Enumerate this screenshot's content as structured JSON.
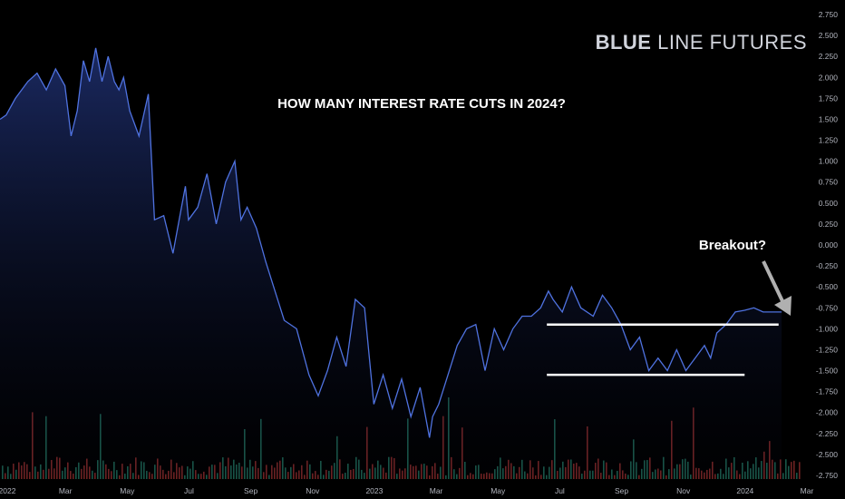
{
  "chart_data": {
    "type": "area",
    "title": "HOW MANY INTEREST RATE CUTS IN 2024?",
    "annotation": "Breakout?",
    "brand": {
      "bold": "BLUE",
      "rest": " LINE FUTURES"
    },
    "colors": {
      "line": "#4f72e0",
      "background": "#000000",
      "level": "#ffffff",
      "volume_up": "#1f6b5a",
      "volume_down": "#8a2a2a",
      "arrow": "#b0b0b0"
    },
    "y_ticks": [
      "2.750",
      "2.500",
      "2.250",
      "2.000",
      "1.750",
      "1.500",
      "1.250",
      "1.000",
      "0.750",
      "0.500",
      "0.250",
      "0.000",
      "-0.250",
      "-0.500",
      "-0.750",
      "-1.000",
      "-1.250",
      "-1.500",
      "-1.750",
      "-2.000",
      "-2.250",
      "-2.500",
      "-2.750"
    ],
    "x_ticks": [
      "2022",
      "Mar",
      "May",
      "Jul",
      "Sep",
      "Nov",
      "2023",
      "Mar",
      "May",
      "Jul",
      "Sep",
      "Nov",
      "2024",
      "Mar"
    ],
    "ylim": [
      -2.75,
      2.75
    ],
    "xlim": [
      0,
      26
    ],
    "series": [
      {
        "x": [
          0,
          0.2,
          0.5,
          0.9,
          1.2,
          1.5,
          1.8,
          2.1,
          2.3,
          2.5,
          2.7,
          2.9,
          3.1,
          3.3,
          3.5,
          3.7,
          3.85,
          4.0,
          4.2,
          4.5,
          4.8,
          5.0,
          5.3,
          5.6,
          5.85,
          6.0,
          6.1,
          6.4,
          6.7,
          7.0,
          7.3,
          7.6,
          7.8,
          8.0,
          8.3,
          8.6,
          8.9,
          9.2,
          9.6,
          10.0,
          10.3,
          10.6,
          10.9,
          11.2,
          11.5,
          11.8,
          12.1,
          12.4,
          12.7,
          13.0,
          13.3,
          13.6,
          13.9,
          14.0,
          14.2,
          14.5,
          14.8,
          15.1,
          15.4,
          15.7,
          16.0,
          16.3,
          16.6,
          16.9,
          17.2,
          17.5,
          17.75,
          17.9,
          18.2,
          18.5,
          18.8,
          19.2,
          19.5,
          19.8,
          20.1,
          20.4,
          20.7,
          21.0,
          21.3,
          21.6,
          21.9,
          22.2,
          22.5,
          22.8,
          23.0,
          23.2,
          23.5,
          23.8,
          24.1,
          24.4,
          24.7,
          24.9,
          25.1,
          25.3
        ],
        "y": [
          1.5,
          1.55,
          1.75,
          1.95,
          2.05,
          1.85,
          2.1,
          1.9,
          1.3,
          1.6,
          2.2,
          1.95,
          2.35,
          1.95,
          2.25,
          1.95,
          1.85,
          2.0,
          1.6,
          1.3,
          1.8,
          0.3,
          0.35,
          -0.1,
          0.4,
          0.7,
          0.3,
          0.45,
          0.85,
          0.25,
          0.75,
          1.0,
          0.3,
          0.45,
          0.2,
          -0.2,
          -0.55,
          -0.9,
          -1.0,
          -1.55,
          -1.8,
          -1.5,
          -1.1,
          -1.45,
          -0.65,
          -0.75,
          -1.9,
          -1.55,
          -1.95,
          -1.6,
          -2.05,
          -1.7,
          -2.3,
          -2.05,
          -1.9,
          -1.55,
          -1.2,
          -1.0,
          -0.95,
          -1.5,
          -1.0,
          -1.25,
          -1.0,
          -0.85,
          -0.85,
          -0.75,
          -0.55,
          -0.65,
          -0.8,
          -0.5,
          -0.75,
          -0.85,
          -0.6,
          -0.75,
          -0.95,
          -1.25,
          -1.1,
          -1.5,
          -1.35,
          -1.5,
          -1.25,
          -1.5,
          -1.35,
          -1.2,
          -1.35,
          -1.05,
          -0.95,
          -0.8,
          -0.78,
          -0.75,
          -0.8,
          -0.8,
          -0.8,
          -0.8
        ]
      }
    ],
    "levels": [
      {
        "y": -0.95,
        "x_start": 17.7,
        "x_end": 25.2
      },
      {
        "y": -1.55,
        "x_start": 17.7,
        "x_end": 24.1
      }
    ]
  }
}
